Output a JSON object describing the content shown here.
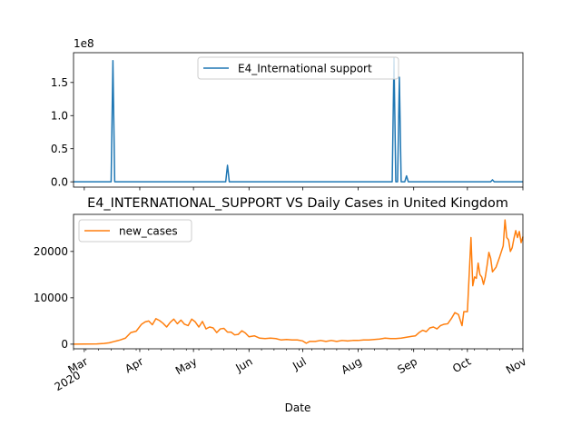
{
  "chart_data": [
    {
      "type": "line",
      "title": "",
      "xlabel": "",
      "ylabel": "",
      "offset_text": "1e8",
      "x_domain": [
        "2020-02-24",
        "2020-11-01"
      ],
      "ylim": [
        -0.08,
        1.95
      ],
      "y_scale_factor": 100000000,
      "yticks": [
        0,
        0.5,
        1.0,
        1.5
      ],
      "ytick_labels": [
        "0.0",
        "0.5",
        "1.0",
        "1.5"
      ],
      "legend": {
        "placement": "upper center"
      },
      "grid": false,
      "series": [
        {
          "name": "E4_International support",
          "color": "#1f77b4",
          "points": [
            [
              "2020-02-24",
              0
            ],
            [
              "2020-03-16",
              0
            ],
            [
              "2020-03-17",
              1.83
            ],
            [
              "2020-03-18",
              0
            ],
            [
              "2020-05-19",
              0
            ],
            [
              "2020-05-20",
              0.25
            ],
            [
              "2020-05-21",
              0
            ],
            [
              "2020-08-20",
              0
            ],
            [
              "2020-08-21",
              1.87
            ],
            [
              "2020-08-22",
              0
            ],
            [
              "2020-08-23",
              0
            ],
            [
              "2020-08-24",
              1.58
            ],
            [
              "2020-08-25",
              0
            ],
            [
              "2020-08-27",
              0
            ],
            [
              "2020-08-28",
              0.09
            ],
            [
              "2020-08-29",
              0
            ],
            [
              "2020-10-14",
              0
            ],
            [
              "2020-10-15",
              0.03
            ],
            [
              "2020-10-16",
              0
            ],
            [
              "2020-11-01",
              0
            ]
          ]
        }
      ]
    },
    {
      "type": "line",
      "title": "E4_INTERNATIONAL_SUPPORT VS Daily Cases in United Kingdom",
      "xlabel": "Date",
      "ylabel": "",
      "x_domain": [
        "2020-02-24",
        "2020-11-01"
      ],
      "ylim": [
        -1000,
        28000
      ],
      "yticks": [
        0,
        10000,
        20000
      ],
      "ytick_labels": [
        "0",
        "10000",
        "20000"
      ],
      "xticks": [
        {
          "date": "2020-03-01",
          "label": "Mar",
          "sublabel": "2020"
        },
        {
          "date": "2020-04-01",
          "label": "Apr"
        },
        {
          "date": "2020-05-01",
          "label": "May"
        },
        {
          "date": "2020-06-01",
          "label": "Jun"
        },
        {
          "date": "2020-07-01",
          "label": "Jul"
        },
        {
          "date": "2020-08-01",
          "label": "Aug"
        },
        {
          "date": "2020-09-01",
          "label": "Sep"
        },
        {
          "date": "2020-10-01",
          "label": "Oct"
        },
        {
          "date": "2020-11-01",
          "label": "Nov"
        }
      ],
      "legend": {
        "placement": "upper left"
      },
      "grid": false,
      "series": [
        {
          "name": "new_cases",
          "color": "#ff7f0e",
          "points": [
            [
              "2020-02-24",
              0
            ],
            [
              "2020-03-01",
              20
            ],
            [
              "2020-03-08",
              60
            ],
            [
              "2020-03-12",
              150
            ],
            [
              "2020-03-15",
              300
            ],
            [
              "2020-03-18",
              600
            ],
            [
              "2020-03-21",
              900
            ],
            [
              "2020-03-24",
              1300
            ],
            [
              "2020-03-27",
              2500
            ],
            [
              "2020-03-30",
              2800
            ],
            [
              "2020-04-02",
              4300
            ],
            [
              "2020-04-04",
              4800
            ],
            [
              "2020-04-06",
              5000
            ],
            [
              "2020-04-08",
              4200
            ],
            [
              "2020-04-10",
              5500
            ],
            [
              "2020-04-12",
              5100
            ],
            [
              "2020-04-14",
              4500
            ],
            [
              "2020-04-16",
              3700
            ],
            [
              "2020-04-18",
              4700
            ],
            [
              "2020-04-20",
              5400
            ],
            [
              "2020-04-22",
              4400
            ],
            [
              "2020-04-24",
              5200
            ],
            [
              "2020-04-26",
              4300
            ],
            [
              "2020-04-28",
              4000
            ],
            [
              "2020-04-30",
              5400
            ],
            [
              "2020-05-02",
              4800
            ],
            [
              "2020-05-04",
              3700
            ],
            [
              "2020-05-06",
              4900
            ],
            [
              "2020-05-08",
              3300
            ],
            [
              "2020-05-10",
              3700
            ],
            [
              "2020-05-12",
              3500
            ],
            [
              "2020-05-14",
              2500
            ],
            [
              "2020-05-16",
              3300
            ],
            [
              "2020-05-18",
              3400
            ],
            [
              "2020-05-20",
              2600
            ],
            [
              "2020-05-22",
              2600
            ],
            [
              "2020-05-24",
              2000
            ],
            [
              "2020-05-26",
              2100
            ],
            [
              "2020-05-28",
              2900
            ],
            [
              "2020-05-30",
              2400
            ],
            [
              "2020-06-01",
              1600
            ],
            [
              "2020-06-04",
              1800
            ],
            [
              "2020-06-07",
              1300
            ],
            [
              "2020-06-10",
              1200
            ],
            [
              "2020-06-13",
              1300
            ],
            [
              "2020-06-16",
              1200
            ],
            [
              "2020-06-19",
              900
            ],
            [
              "2020-06-22",
              1000
            ],
            [
              "2020-06-25",
              900
            ],
            [
              "2020-06-28",
              900
            ],
            [
              "2020-07-01",
              700
            ],
            [
              "2020-07-03",
              200
            ],
            [
              "2020-07-05",
              600
            ],
            [
              "2020-07-08",
              600
            ],
            [
              "2020-07-11",
              800
            ],
            [
              "2020-07-14",
              600
            ],
            [
              "2020-07-17",
              800
            ],
            [
              "2020-07-20",
              600
            ],
            [
              "2020-07-23",
              800
            ],
            [
              "2020-07-26",
              700
            ],
            [
              "2020-07-29",
              800
            ],
            [
              "2020-08-01",
              800
            ],
            [
              "2020-08-04",
              900
            ],
            [
              "2020-08-07",
              900
            ],
            [
              "2020-08-10",
              1000
            ],
            [
              "2020-08-13",
              1100
            ],
            [
              "2020-08-16",
              1300
            ],
            [
              "2020-08-19",
              1200
            ],
            [
              "2020-08-22",
              1200
            ],
            [
              "2020-08-25",
              1300
            ],
            [
              "2020-08-28",
              1500
            ],
            [
              "2020-08-31",
              1700
            ],
            [
              "2020-09-02",
              1800
            ],
            [
              "2020-09-04",
              2500
            ],
            [
              "2020-09-06",
              3000
            ],
            [
              "2020-09-08",
              2700
            ],
            [
              "2020-09-10",
              3500
            ],
            [
              "2020-09-12",
              3700
            ],
            [
              "2020-09-14",
              3300
            ],
            [
              "2020-09-16",
              4000
            ],
            [
              "2020-09-18",
              4300
            ],
            [
              "2020-09-20",
              4400
            ],
            [
              "2020-09-22",
              5500
            ],
            [
              "2020-09-24",
              6800
            ],
            [
              "2020-09-26",
              6400
            ],
            [
              "2020-09-28",
              4000
            ],
            [
              "2020-09-29",
              7000
            ],
            [
              "2020-10-01",
              7000
            ],
            [
              "2020-10-03",
              23000
            ],
            [
              "2020-10-04",
              12600
            ],
            [
              "2020-10-05",
              14500
            ],
            [
              "2020-10-06",
              14200
            ],
            [
              "2020-10-07",
              17500
            ],
            [
              "2020-10-08",
              15000
            ],
            [
              "2020-10-09",
              14500
            ],
            [
              "2020-10-10",
              12900
            ],
            [
              "2020-10-11",
              14500
            ],
            [
              "2020-10-12",
              17000
            ],
            [
              "2020-10-13",
              19800
            ],
            [
              "2020-10-14",
              18500
            ],
            [
              "2020-10-15",
              15600
            ],
            [
              "2020-10-17",
              16600
            ],
            [
              "2020-10-19",
              18800
            ],
            [
              "2020-10-21",
              21200
            ],
            [
              "2020-10-22",
              26800
            ],
            [
              "2020-10-23",
              23000
            ],
            [
              "2020-10-24",
              22500
            ],
            [
              "2020-10-25",
              20000
            ],
            [
              "2020-10-26",
              20800
            ],
            [
              "2020-10-27",
              22800
            ],
            [
              "2020-10-28",
              24500
            ],
            [
              "2020-10-29",
              23000
            ],
            [
              "2020-10-30",
              24300
            ],
            [
              "2020-10-31",
              21900
            ],
            [
              "2020-11-01",
              23200
            ]
          ]
        }
      ]
    }
  ]
}
